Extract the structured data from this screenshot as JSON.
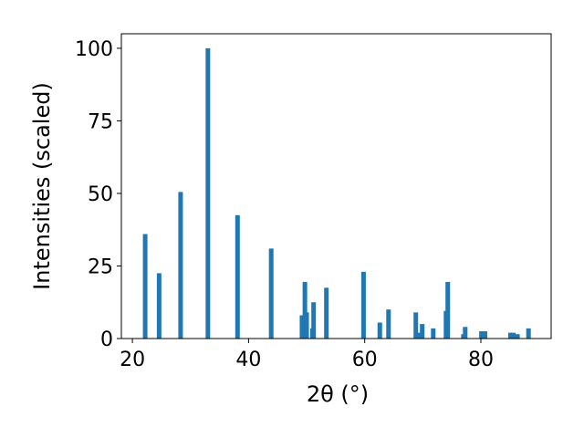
{
  "chart_data": {
    "type": "bar",
    "xlabel": "2θ (°)",
    "ylabel": "Intensities (scaled)",
    "x": [
      22.2,
      24.6,
      28.3,
      33.0,
      38.1,
      43.9,
      49.2,
      49.7,
      50.0,
      51.0,
      51.2,
      53.4,
      59.8,
      62.6,
      64.1,
      68.8,
      69.4,
      69.9,
      71.8,
      74.0,
      74.3,
      77.0,
      77.3,
      80.1,
      80.7,
      85.1,
      85.6,
      86.3,
      88.2
    ],
    "values": [
      36,
      22.5,
      50.5,
      100,
      42.5,
      31,
      8,
      19.5,
      9,
      3.5,
      12.5,
      17.5,
      23,
      5.5,
      10,
      9,
      2,
      5,
      3.5,
      9.5,
      19.5,
      1.5,
      4,
      2.5,
      2.5,
      2,
      2,
      1.5,
      3.5
    ],
    "color": "#1f77b4",
    "xlim": [
      18.1,
      92.1
    ],
    "xticks": [
      20,
      40,
      60,
      80
    ],
    "ylim": [
      0,
      105
    ],
    "yticks": [
      0,
      25,
      50,
      75,
      100
    ]
  }
}
